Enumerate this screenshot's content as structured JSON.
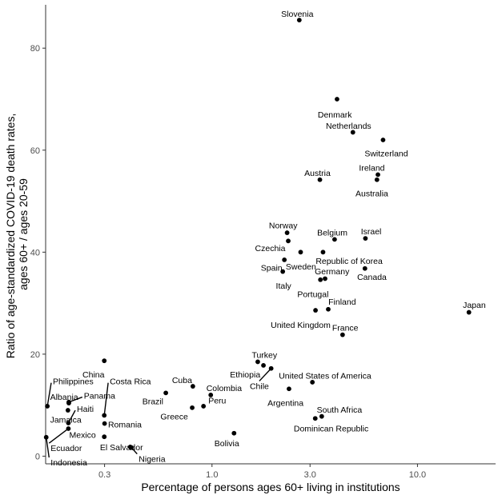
{
  "chart_data": {
    "type": "scatter",
    "title": "",
    "xlabel": "Percentage of persons ages 60+ living in institutions",
    "ylabel": "Ratio of age-standardized COVID-19 death rates, ages 60+ / ages 20-59",
    "ylabel_lines": [
      "Ratio of age-standardized COVID-19 death rates,",
      "ages 60+ / ages 20-59"
    ],
    "x_scale": "log10",
    "xlim": [
      0.155,
      24
    ],
    "ylim": [
      -1.5,
      88.5
    ],
    "x_ticks": [
      {
        "value": 0.3,
        "label": "0.3"
      },
      {
        "value": 1.0,
        "label": "1.0"
      },
      {
        "value": 3.0,
        "label": "3.0"
      },
      {
        "value": 10.0,
        "label": "10.0"
      }
    ],
    "y_ticks": [
      {
        "value": 0,
        "label": "0"
      },
      {
        "value": 20,
        "label": "20"
      },
      {
        "value": 40,
        "label": "40"
      },
      {
        "value": 60,
        "label": "60"
      },
      {
        "value": 80,
        "label": "80"
      }
    ],
    "points": [
      {
        "name": "Slovenia",
        "x": 2.66,
        "y": 85.5
      },
      {
        "name": "Denmark",
        "x": 4.06,
        "y": 70.0
      },
      {
        "name": "Netherlands",
        "x": 4.85,
        "y": 63.5
      },
      {
        "name": "Switzerland",
        "x": 6.8,
        "y": 62.0
      },
      {
        "name": "Austria",
        "x": 3.35,
        "y": 54.2
      },
      {
        "name": "Ireland",
        "x": 6.42,
        "y": 55.2
      },
      {
        "name": "Australia",
        "x": 6.35,
        "y": 54.2
      },
      {
        "name": "Norway",
        "x": 2.32,
        "y": 43.8
      },
      {
        "name": "Czechia",
        "x": 2.35,
        "y": 42.2
      },
      {
        "name": "Belgium",
        "x": 3.95,
        "y": 42.5
      },
      {
        "name": "Israel",
        "x": 5.58,
        "y": 42.7
      },
      {
        "name": "Sweden",
        "x": 2.7,
        "y": 40.0
      },
      {
        "name": "Republic of Korea",
        "x": 3.47,
        "y": 40.0
      },
      {
        "name": "Spain",
        "x": 2.25,
        "y": 38.5
      },
      {
        "name": "Italy",
        "x": 2.21,
        "y": 36.2
      },
      {
        "name": "Canada",
        "x": 5.55,
        "y": 36.8
      },
      {
        "name": "Germany",
        "x": 3.55,
        "y": 34.8
      },
      {
        "name": "Portugal",
        "x": 3.37,
        "y": 34.6
      },
      {
        "name": "Finland",
        "x": 3.68,
        "y": 28.8
      },
      {
        "name": "United Kingdom",
        "x": 3.19,
        "y": 28.6
      },
      {
        "name": "Japan",
        "x": 17.8,
        "y": 28.2
      },
      {
        "name": "France",
        "x": 4.32,
        "y": 23.8
      },
      {
        "name": "Turkey",
        "x": 1.67,
        "y": 18.5
      },
      {
        "name": "Ethiopia",
        "x": 1.78,
        "y": 17.8
      },
      {
        "name": "Chile",
        "x": 1.94,
        "y": 17.2
      },
      {
        "name": "United States of America",
        "x": 3.08,
        "y": 14.5
      },
      {
        "name": "Argentina",
        "x": 2.37,
        "y": 13.2
      },
      {
        "name": "China",
        "x": 0.299,
        "y": 18.7
      },
      {
        "name": "Cuba",
        "x": 0.807,
        "y": 13.7
      },
      {
        "name": "Brazil",
        "x": 0.596,
        "y": 12.4
      },
      {
        "name": "Colombia",
        "x": 0.986,
        "y": 12.0
      },
      {
        "name": "Peru",
        "x": 0.909,
        "y": 9.8
      },
      {
        "name": "Greece",
        "x": 0.801,
        "y": 9.5
      },
      {
        "name": "Bolivia",
        "x": 1.28,
        "y": 4.5
      },
      {
        "name": "South Africa",
        "x": 3.42,
        "y": 7.8
      },
      {
        "name": "Dominican Republic",
        "x": 3.18,
        "y": 7.4
      },
      {
        "name": "Philippines",
        "x": 0.158,
        "y": 9.8
      },
      {
        "name": "Albania",
        "x": 0.201,
        "y": 10.4
      },
      {
        "name": "Panama",
        "x": 0.201,
        "y": 10.6
      },
      {
        "name": "Costa Rica",
        "x": 0.299,
        "y": 8.0
      },
      {
        "name": "Haiti",
        "x": 0.2,
        "y": 6.5
      },
      {
        "name": "Jamaica",
        "x": 0.199,
        "y": 9.0
      },
      {
        "name": "Romania",
        "x": 0.3,
        "y": 6.4
      },
      {
        "name": "Ecuador",
        "x": 0.2,
        "y": 5.4
      },
      {
        "name": "Mexico",
        "x": 0.299,
        "y": 3.8
      },
      {
        "name": "El Salvador",
        "x": 0.4,
        "y": 1.8
      },
      {
        "name": "Nigeria",
        "x": 0.405,
        "y": 1.7
      },
      {
        "name": "Indonesia",
        "x": 0.156,
        "y": 3.7
      }
    ],
    "labels": [
      {
        "text": "Slovenia",
        "lx": 2.6,
        "ly": 86.8,
        "anchor": "middle",
        "leader": false
      },
      {
        "text": "Denmark",
        "lx": 3.96,
        "ly": 67.0,
        "anchor": "middle",
        "leader": false
      },
      {
        "text": "Netherlands",
        "lx": 4.62,
        "ly": 64.8,
        "anchor": "middle",
        "leader": false
      },
      {
        "text": "Switzerland",
        "lx": 7.05,
        "ly": 59.4,
        "anchor": "middle",
        "leader": false
      },
      {
        "text": "Austria",
        "lx": 3.26,
        "ly": 55.6,
        "anchor": "middle",
        "leader": false
      },
      {
        "text": "Ireland",
        "lx": 6.0,
        "ly": 56.6,
        "anchor": "middle",
        "leader": false
      },
      {
        "text": "Australia",
        "lx": 6.0,
        "ly": 51.6,
        "anchor": "middle",
        "leader": false
      },
      {
        "text": "Norway",
        "lx": 2.22,
        "ly": 45.3,
        "anchor": "middle",
        "leader": false
      },
      {
        "text": "Czechia",
        "lx": 1.92,
        "ly": 40.8,
        "anchor": "middle",
        "leader": false
      },
      {
        "text": "Belgium",
        "lx": 3.85,
        "ly": 43.9,
        "anchor": "middle",
        "leader": false
      },
      {
        "text": "Israel",
        "lx": 5.95,
        "ly": 44.1,
        "anchor": "middle",
        "leader": false
      },
      {
        "text": "Sweden",
        "lx": 2.71,
        "ly": 37.2,
        "anchor": "middle",
        "leader": false
      },
      {
        "text": "Republic of Korea",
        "lx": 4.65,
        "ly": 38.3,
        "anchor": "middle",
        "leader": false
      },
      {
        "text": "Spain",
        "lx": 1.95,
        "ly": 37.0,
        "anchor": "middle",
        "leader": false
      },
      {
        "text": "Italy",
        "lx": 2.23,
        "ly": 33.5,
        "anchor": "middle",
        "leader": false
      },
      {
        "text": "Canada",
        "lx": 6.0,
        "ly": 35.2,
        "anchor": "middle",
        "leader": false
      },
      {
        "text": "Germany",
        "lx": 3.84,
        "ly": 36.3,
        "anchor": "middle",
        "leader": false
      },
      {
        "text": "Portugal",
        "lx": 3.1,
        "ly": 31.8,
        "anchor": "middle",
        "leader": false
      },
      {
        "text": "Finland",
        "lx": 4.3,
        "ly": 30.3,
        "anchor": "middle",
        "leader": false
      },
      {
        "text": "United Kingdom",
        "lx": 2.7,
        "ly": 25.8,
        "anchor": "middle",
        "leader": false
      },
      {
        "text": "Japan",
        "lx": 18.9,
        "ly": 29.7,
        "anchor": "middle",
        "leader": false
      },
      {
        "text": "France",
        "lx": 4.45,
        "ly": 25.2,
        "anchor": "middle",
        "leader": false
      },
      {
        "text": "Turkey",
        "lx": 1.8,
        "ly": 19.9,
        "anchor": "middle",
        "leader": false
      },
      {
        "text": "Ethiopia",
        "lx": 1.45,
        "ly": 16.1,
        "anchor": "middle",
        "leader": false
      },
      {
        "text": "Chile",
        "lx": 1.7,
        "ly": 13.8,
        "anchor": "middle",
        "leader": true
      },
      {
        "text": "United States of America",
        "lx": 3.55,
        "ly": 15.8,
        "anchor": "middle",
        "leader": false
      },
      {
        "text": "Argentina",
        "lx": 2.28,
        "ly": 10.5,
        "anchor": "middle",
        "leader": false
      },
      {
        "text": "China",
        "lx": 0.265,
        "ly": 16.1,
        "anchor": "middle",
        "leader": false
      },
      {
        "text": "Cuba",
        "lx": 0.715,
        "ly": 15.0,
        "anchor": "middle",
        "leader": false
      },
      {
        "text": "Brazil",
        "lx": 0.515,
        "ly": 10.8,
        "anchor": "middle",
        "leader": false
      },
      {
        "text": "Colombia",
        "lx": 1.145,
        "ly": 13.4,
        "anchor": "middle",
        "leader": false
      },
      {
        "text": "Peru",
        "lx": 1.06,
        "ly": 11.0,
        "anchor": "middle",
        "leader": false
      },
      {
        "text": "Greece",
        "lx": 0.655,
        "ly": 7.8,
        "anchor": "middle",
        "leader": false
      },
      {
        "text": "Bolivia",
        "lx": 1.18,
        "ly": 2.6,
        "anchor": "middle",
        "leader": false
      },
      {
        "text": "South Africa",
        "lx": 4.17,
        "ly": 9.2,
        "anchor": "middle",
        "leader": false
      },
      {
        "text": "Dominican Republic",
        "lx": 3.8,
        "ly": 5.5,
        "anchor": "middle",
        "leader": false
      },
      {
        "text": "Philippines",
        "lx": 0.168,
        "ly": 14.7,
        "anchor": "start",
        "leader": true
      },
      {
        "text": "Albania",
        "lx": 0.163,
        "ly": 11.7,
        "anchor": "start",
        "leader": false
      },
      {
        "text": "Panama",
        "lx": 0.238,
        "ly": 11.9,
        "anchor": "start",
        "leader": true
      },
      {
        "text": "Costa Rica",
        "lx": 0.318,
        "ly": 14.7,
        "anchor": "start",
        "leader": true
      },
      {
        "text": "Haiti",
        "lx": 0.22,
        "ly": 9.3,
        "anchor": "start",
        "leader": true
      },
      {
        "text": "Jamaica",
        "lx": 0.163,
        "ly": 7.2,
        "anchor": "start",
        "leader": false
      },
      {
        "text": "Romania",
        "lx": 0.312,
        "ly": 6.3,
        "anchor": "start",
        "leader": false
      },
      {
        "text": "Ecuador",
        "lx": 0.164,
        "ly": 1.6,
        "anchor": "start",
        "leader": true
      },
      {
        "text": "Mexico",
        "lx": 0.202,
        "ly": 4.2,
        "anchor": "start",
        "leader": false
      },
      {
        "text": "El Salvador",
        "lx": 0.285,
        "ly": 1.8,
        "anchor": "start",
        "leader": false
      },
      {
        "text": "Nigeria",
        "lx": 0.44,
        "ly": -0.5,
        "anchor": "start",
        "leader": true
      },
      {
        "text": "Indonesia",
        "lx": 0.164,
        "ly": -1.2,
        "anchor": "start",
        "leader": true
      }
    ]
  }
}
